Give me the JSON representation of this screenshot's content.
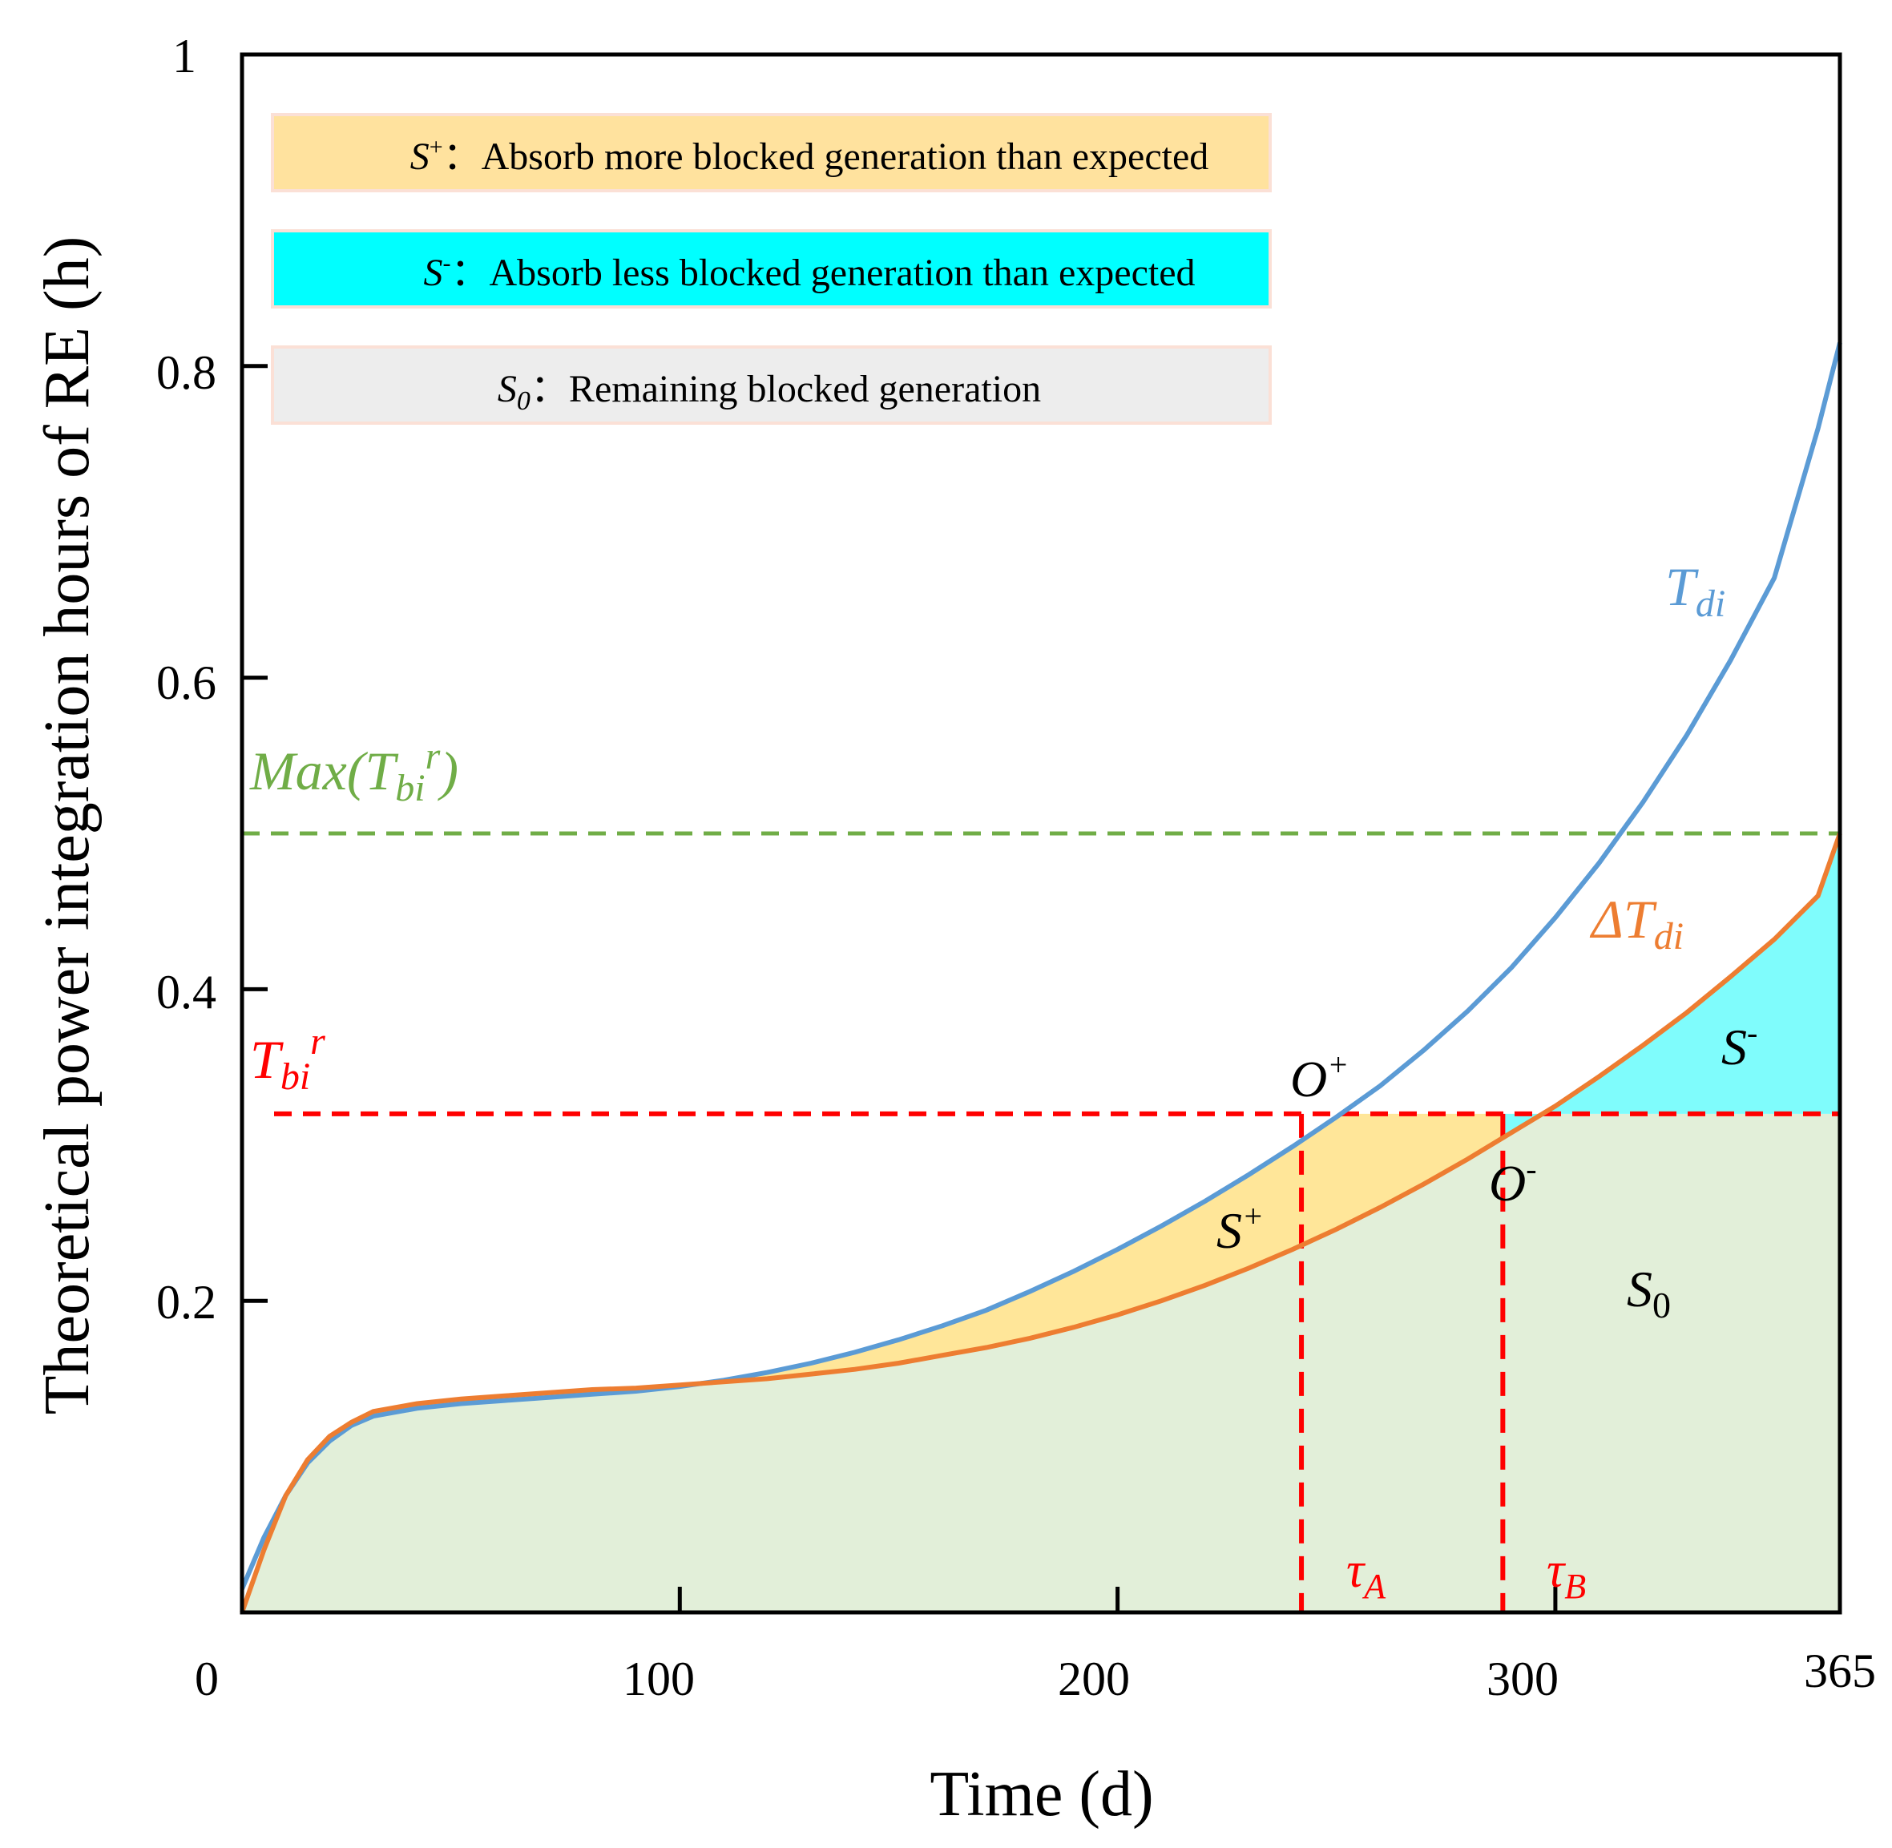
{
  "chart_data": {
    "type": "area",
    "xlabel": "Time (d)",
    "ylabel": "Theoretical power integration hours of RE (h)",
    "xlim": [
      0,
      365
    ],
    "ylim": [
      0,
      1
    ],
    "x_ticks": [
      0,
      100,
      200,
      300,
      365
    ],
    "y_ticks": [
      0.2,
      0.4,
      0.6,
      0.8,
      1
    ],
    "x_tick_labels": [
      "0",
      "100",
      "200",
      "300",
      "365"
    ],
    "y_tick_labels": [
      "0.2",
      "0.4",
      "0.6",
      "0.8",
      "1"
    ],
    "series": [
      {
        "name": "T_di",
        "color": "#5b9bd5",
        "x": [
          0,
          5,
          10,
          15,
          20,
          25,
          30,
          40,
          50,
          60,
          70,
          80,
          90,
          100,
          110,
          120,
          130,
          140,
          150,
          160,
          170,
          180,
          190,
          200,
          210,
          220,
          230,
          240,
          250,
          260,
          270,
          280,
          290,
          300,
          310,
          320,
          330,
          340,
          350,
          360,
          365
        ],
        "y": [
          0.015,
          0.048,
          0.075,
          0.096,
          0.11,
          0.12,
          0.126,
          0.131,
          0.134,
          0.136,
          0.138,
          0.14,
          0.142,
          0.145,
          0.149,
          0.154,
          0.16,
          0.167,
          0.175,
          0.184,
          0.194,
          0.206,
          0.219,
          0.233,
          0.248,
          0.264,
          0.281,
          0.299,
          0.318,
          0.338,
          0.361,
          0.386,
          0.414,
          0.446,
          0.481,
          0.52,
          0.563,
          0.611,
          0.664,
          0.76,
          0.815
        ]
      },
      {
        "name": "ΔT_di",
        "color": "#ed7d31",
        "x": [
          0,
          5,
          10,
          15,
          20,
          25,
          30,
          40,
          50,
          60,
          70,
          80,
          90,
          100,
          110,
          120,
          130,
          140,
          150,
          160,
          170,
          180,
          190,
          200,
          210,
          220,
          230,
          240,
          250,
          260,
          270,
          280,
          290,
          300,
          310,
          320,
          330,
          340,
          350,
          360,
          365
        ],
        "y": [
          0.0,
          0.04,
          0.075,
          0.098,
          0.113,
          0.122,
          0.129,
          0.134,
          0.137,
          0.139,
          0.141,
          0.143,
          0.144,
          0.146,
          0.148,
          0.15,
          0.153,
          0.156,
          0.16,
          0.165,
          0.17,
          0.176,
          0.183,
          0.191,
          0.2,
          0.21,
          0.221,
          0.233,
          0.246,
          0.26,
          0.275,
          0.291,
          0.308,
          0.325,
          0.344,
          0.364,
          0.385,
          0.408,
          0.432,
          0.46,
          0.5
        ]
      }
    ],
    "reference_lines": {
      "T_bi_r": 0.32,
      "max_T_bi_r": 0.5,
      "tau_A": 242,
      "tau_B": 288
    },
    "region_colors": {
      "S_plus": "#ffe699",
      "S_minus": "#7ffcfc",
      "S0": "#e2efd9",
      "legend_S_plus": "#ffe29e",
      "legend_S_minus": "#00ffff",
      "legend_S0": "#ededed",
      "reference_red": "#ff0000",
      "reference_green": "#70ad47"
    },
    "legend": [
      {
        "symbol_base": "S",
        "symbol_sup": "+",
        "symbol_sub": "",
        "separator": "：",
        "text": "Absorb more blocked generation than expected"
      },
      {
        "symbol_base": "S",
        "symbol_sup": "-",
        "symbol_sub": "",
        "separator": "：",
        "text": "Absorb less blocked generation than expected"
      },
      {
        "symbol_base": "S",
        "symbol_sup": "",
        "symbol_sub": "0",
        "separator": "：",
        "text": "Remaining blocked generation"
      }
    ],
    "annotations": {
      "max_label": {
        "pre": "Max(T",
        "sub": "bi",
        "sup": "r",
        "post": ")"
      },
      "tbr_label": {
        "base": "T",
        "sub": "bi",
        "sup": "r"
      },
      "tdi_label": {
        "base": "T",
        "sub": "di"
      },
      "dtdi_label": {
        "base": "ΔT",
        "sub": "di"
      },
      "o_plus": {
        "base": "O",
        "sup": "+"
      },
      "o_minus": {
        "base": "O",
        "sup": "-"
      },
      "s_plus": {
        "base": "S",
        "sup": "+"
      },
      "s_minus": {
        "base": "S",
        "sup": "-"
      },
      "s0": {
        "base": "S",
        "sub": "0"
      },
      "tau_a": {
        "base": "τ",
        "sub": "A"
      },
      "tau_b": {
        "base": "τ",
        "sub": "B"
      }
    }
  }
}
